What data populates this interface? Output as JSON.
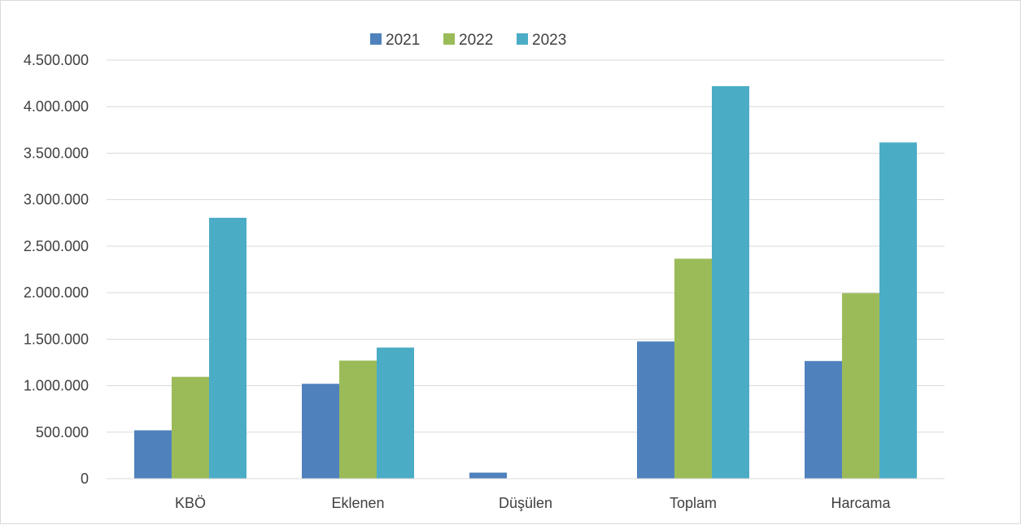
{
  "chart_data": {
    "type": "bar",
    "categories": [
      "KBÖ",
      "Eklenen",
      "Düşülen",
      "Toplam",
      "Harcama"
    ],
    "series": [
      {
        "name": "2021",
        "color": "#4f81bd",
        "values": [
          520000,
          1020000,
          65000,
          1475000,
          1265000
        ]
      },
      {
        "name": "2022",
        "color": "#9bbb59",
        "values": [
          1095000,
          1270000,
          0,
          2365000,
          1995000
        ]
      },
      {
        "name": "2023",
        "color": "#4bacc6",
        "values": [
          2805000,
          1410000,
          0,
          4220000,
          3615000
        ]
      }
    ],
    "ylim": [
      0,
      4500000
    ],
    "yticks": [
      0,
      500000,
      1000000,
      1500000,
      2000000,
      2500000,
      3000000,
      3500000,
      4000000,
      4500000
    ],
    "ytick_labels": [
      "0",
      "500.000",
      "1.000.000",
      "1.500.000",
      "2.000.000",
      "2.500.000",
      "3.000.000",
      "3.500.000",
      "4.000.000",
      "4.500.000"
    ],
    "title": "",
    "xlabel": "",
    "ylabel": "",
    "grid": true,
    "legend_position": "top"
  }
}
